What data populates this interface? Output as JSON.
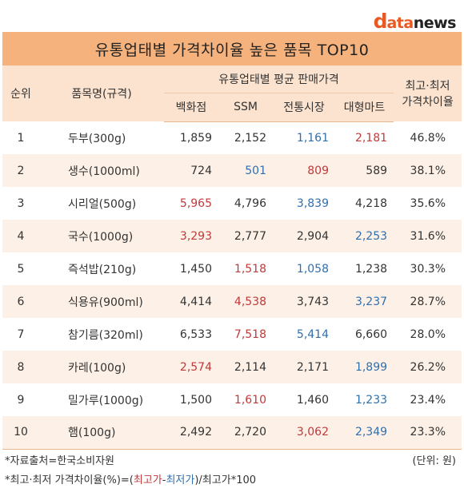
{
  "logo": {
    "d": "d",
    "ata": "ata",
    "news": "news"
  },
  "chart_data": {
    "type": "table",
    "title": "유통업태별 가격차이율 높은 품목 TOP10",
    "headers": {
      "rank": "순위",
      "item": "품목명(규격)",
      "group": "유통업태별 평균 판매가격",
      "dept": "백화점",
      "ssm": "SSM",
      "market": "전통시장",
      "mart": "대형마트",
      "rate_line1": "최고·최저",
      "rate_line2": "가격차이율"
    },
    "rows": [
      {
        "rank": "1",
        "item": "두부(300g)",
        "dept": "1,859",
        "ssm": "2,152",
        "market": "1,161",
        "mart": "2,181",
        "rate": "46.8%",
        "hi": "mart",
        "lo": "market"
      },
      {
        "rank": "2",
        "item": "생수(1000ml)",
        "dept": "724",
        "ssm": "501",
        "market": "809",
        "mart": "589",
        "rate": "38.1%",
        "hi": "market",
        "lo": "ssm"
      },
      {
        "rank": "3",
        "item": "시리얼(500g)",
        "dept": "5,965",
        "ssm": "4,796",
        "market": "3,839",
        "mart": "4,218",
        "rate": "35.6%",
        "hi": "dept",
        "lo": "market"
      },
      {
        "rank": "4",
        "item": "국수(1000g)",
        "dept": "3,293",
        "ssm": "2,777",
        "market": "2,904",
        "mart": "2,253",
        "rate": "31.6%",
        "hi": "dept",
        "lo": "mart"
      },
      {
        "rank": "5",
        "item": "즉석밥(210g)",
        "dept": "1,450",
        "ssm": "1,518",
        "market": "1,058",
        "mart": "1,238",
        "rate": "30.3%",
        "hi": "ssm",
        "lo": "market"
      },
      {
        "rank": "6",
        "item": "식용유(900ml)",
        "dept": "4,414",
        "ssm": "4,538",
        "market": "3,743",
        "mart": "3,237",
        "rate": "28.7%",
        "hi": "ssm",
        "lo": "mart"
      },
      {
        "rank": "7",
        "item": "참기름(320ml)",
        "dept": "6,533",
        "ssm": "7,518",
        "market": "5,414",
        "mart": "6,660",
        "rate": "28.0%",
        "hi": "ssm",
        "lo": "market"
      },
      {
        "rank": "8",
        "item": "카레(100g)",
        "dept": "2,574",
        "ssm": "2,114",
        "market": "2,171",
        "mart": "1,899",
        "rate": "26.2%",
        "hi": "dept",
        "lo": "mart"
      },
      {
        "rank": "9",
        "item": "밀가루(1000g)",
        "dept": "1,500",
        "ssm": "1,610",
        "market": "1,460",
        "mart": "1,233",
        "rate": "23.4%",
        "hi": "ssm",
        "lo": "mart"
      },
      {
        "rank": "10",
        "item": "햄(100g)",
        "dept": "2,492",
        "ssm": "2,720",
        "market": "3,062",
        "mart": "2,349",
        "rate": "23.3%",
        "hi": "market",
        "lo": "mart"
      }
    ],
    "colors": {
      "highest": "#c0393b",
      "lowest": "#2f6fae",
      "title_bg": "#f6b27c",
      "header_bg": "#fbe3cf",
      "stripe": "#fdf1e7"
    }
  },
  "footer": {
    "source": "*자료출처=한국소비자원",
    "unit": "(단위: 원)",
    "formula_prefix": "*최고·최저 가격차이율(%)=(",
    "formula_high": "최고가",
    "formula_minus": "-",
    "formula_low": "최저가",
    "formula_suffix": ")/최고가*100"
  }
}
